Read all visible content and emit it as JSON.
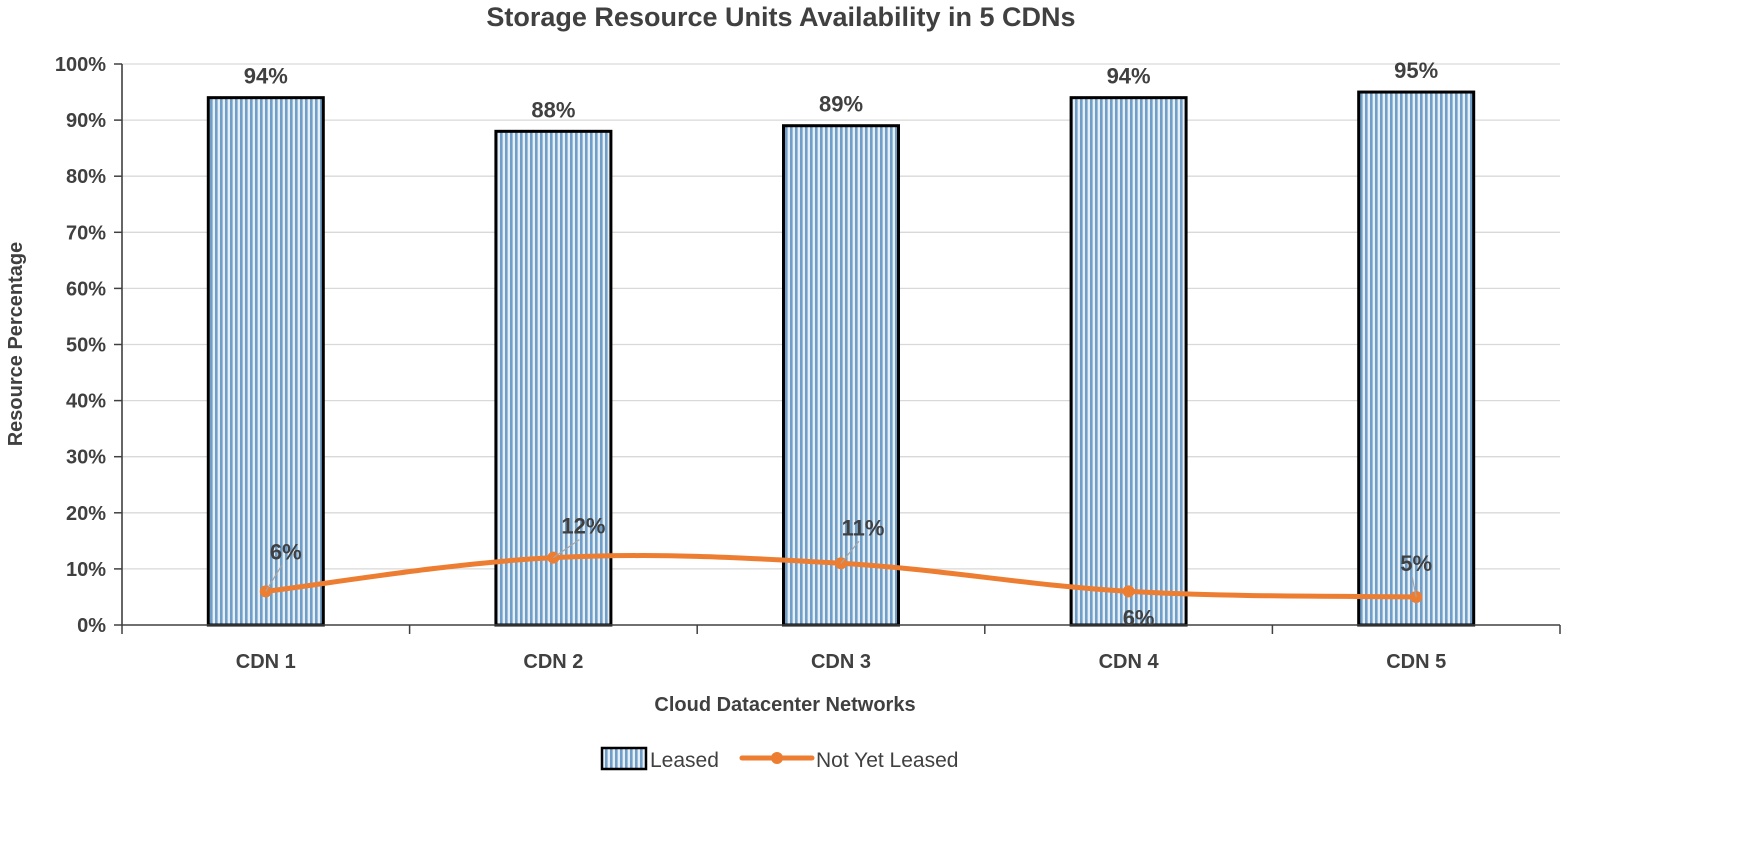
{
  "chart_data": {
    "type": "bar",
    "title": "Storage Resource Units Availability in 5 CDNs",
    "xlabel": "Cloud Datacenter Networks",
    "ylabel": "Resource Percentage",
    "ylim": [
      0,
      100
    ],
    "yticks": [
      "0%",
      "10%",
      "20%",
      "30%",
      "40%",
      "50%",
      "60%",
      "70%",
      "80%",
      "90%",
      "100%"
    ],
    "grid": true,
    "legend_position": "bottom",
    "categories": [
      "CDN 1",
      "CDN 2",
      "CDN 3",
      "CDN 4",
      "CDN 5"
    ],
    "series": [
      {
        "name": "Leased",
        "type": "bar",
        "values": [
          94,
          88,
          89,
          94,
          95
        ],
        "labels": [
          "94%",
          "88%",
          "89%",
          "94%",
          "95%"
        ],
        "color": "#8db4d6"
      },
      {
        "name": "Not Yet Leased",
        "type": "line",
        "smooth": true,
        "values": [
          6,
          12,
          11,
          6,
          5
        ],
        "labels": [
          "6%",
          "12%",
          "11%",
          "6%",
          "5%"
        ],
        "color": "#ed7d31"
      }
    ]
  }
}
